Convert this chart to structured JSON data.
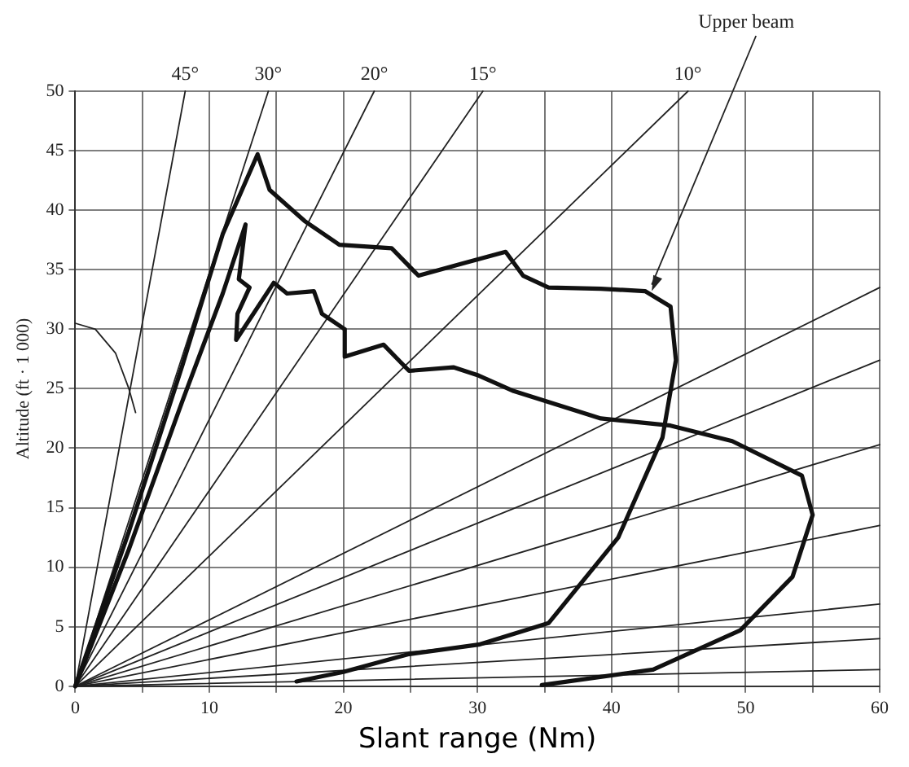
{
  "chart_data": {
    "type": "line",
    "xlabel": "Slant range (Nm)",
    "ylabel": "Altitude (ft · 1 000)",
    "xlim": [
      0,
      60
    ],
    "ylim": [
      0,
      50
    ],
    "xticks": [
      0,
      {
        "value": 5,
        "label": null
      },
      10,
      {
        "value": 15,
        "label": null
      },
      20,
      {
        "value": 25,
        "label": null
      },
      30,
      {
        "value": 35,
        "label": null
      },
      40,
      {
        "value": 45,
        "label": null
      },
      50,
      {
        "value": 55,
        "label": null
      },
      60
    ],
    "yticks": [
      0,
      5,
      10,
      15,
      20,
      25,
      30,
      35,
      40,
      45,
      50
    ],
    "grid": true,
    "legend": false,
    "marker": "none",
    "line_style": "solid",
    "annotations": [
      {
        "text": "Upper beam",
        "x": 43,
        "y": 33.2
      }
    ],
    "series": [
      {
        "color": "#111111",
        "x": [
          0,
          4,
          8,
          11,
          13.6,
          14.5,
          17.1,
          19.7,
          23.6,
          25.6,
          28.8,
          32.1,
          33.4,
          35.3,
          39.2,
          42.5,
          44.4,
          44.8,
          43.8,
          40.5,
          35.3,
          30.1,
          24.9,
          20,
          16.5
        ],
        "values": [
          0,
          13,
          27,
          38,
          44.7,
          41.7,
          39.1,
          37.1,
          36.8,
          34.5,
          35.5,
          36.5,
          34.5,
          33.5,
          33.4,
          33.2,
          31.9,
          27.4,
          20.9,
          12.5,
          5.3,
          3.5,
          2.7,
          1.2,
          0.4
        ]
      },
      {
        "color": "#111111",
        "x": [
          0,
          4,
          8,
          11,
          12.7,
          12.2,
          13,
          12.1,
          12,
          14.8,
          15.8,
          17.8,
          18.4,
          20.1,
          20.1,
          23,
          24.9,
          28.2,
          30.1,
          32.7,
          39.2,
          44.4,
          49,
          54.2,
          55,
          53.5,
          49.6,
          43.1,
          34.8
        ],
        "values": [
          0,
          11.5,
          24,
          33,
          38.8,
          34.2,
          33.5,
          31.3,
          29.1,
          33.9,
          33,
          33.2,
          31.3,
          30,
          27.7,
          28.7,
          26.5,
          26.8,
          26.1,
          24.8,
          22.5,
          21.9,
          20.6,
          17.7,
          14.4,
          9.2,
          4.7,
          1.4,
          0.1
        ]
      },
      {
        "name": "45°",
        "color": "#222222",
        "x": [
          0,
          8.2
        ],
        "values": [
          0,
          50
        ]
      },
      {
        "name": "30°",
        "color": "#222222",
        "x": [
          0,
          14.4
        ],
        "values": [
          0,
          50
        ]
      },
      {
        "name": "20°",
        "color": "#222222",
        "x": [
          0,
          22.3
        ],
        "values": [
          0,
          50
        ]
      },
      {
        "name": "15°",
        "color": "#222222",
        "x": [
          0,
          30.4
        ],
        "values": [
          0,
          50
        ]
      },
      {
        "name": "10°",
        "color": "#222222",
        "x": [
          0,
          45.7
        ],
        "values": [
          0,
          50
        ]
      },
      {
        "color": "#222222",
        "x": [
          0,
          60
        ],
        "values": [
          0,
          33.5
        ]
      },
      {
        "color": "#222222",
        "x": [
          0,
          60
        ],
        "values": [
          0,
          27.4
        ]
      },
      {
        "color": "#222222",
        "x": [
          0,
          60
        ],
        "values": [
          0,
          20.3
        ]
      },
      {
        "color": "#222222",
        "x": [
          0,
          60
        ],
        "values": [
          0,
          13.5
        ]
      },
      {
        "color": "#222222",
        "x": [
          0,
          60
        ],
        "values": [
          0,
          6.9
        ]
      },
      {
        "color": "#222222",
        "x": [
          0,
          60
        ],
        "values": [
          0,
          4
        ]
      },
      {
        "color": "#222222",
        "x": [
          0,
          60
        ],
        "values": [
          0,
          1.4
        ]
      },
      {
        "color": "#222222",
        "x": [
          0,
          1.5,
          3,
          4,
          4.5
        ],
        "values": [
          30.5,
          30,
          28,
          25,
          23
        ]
      }
    ]
  }
}
